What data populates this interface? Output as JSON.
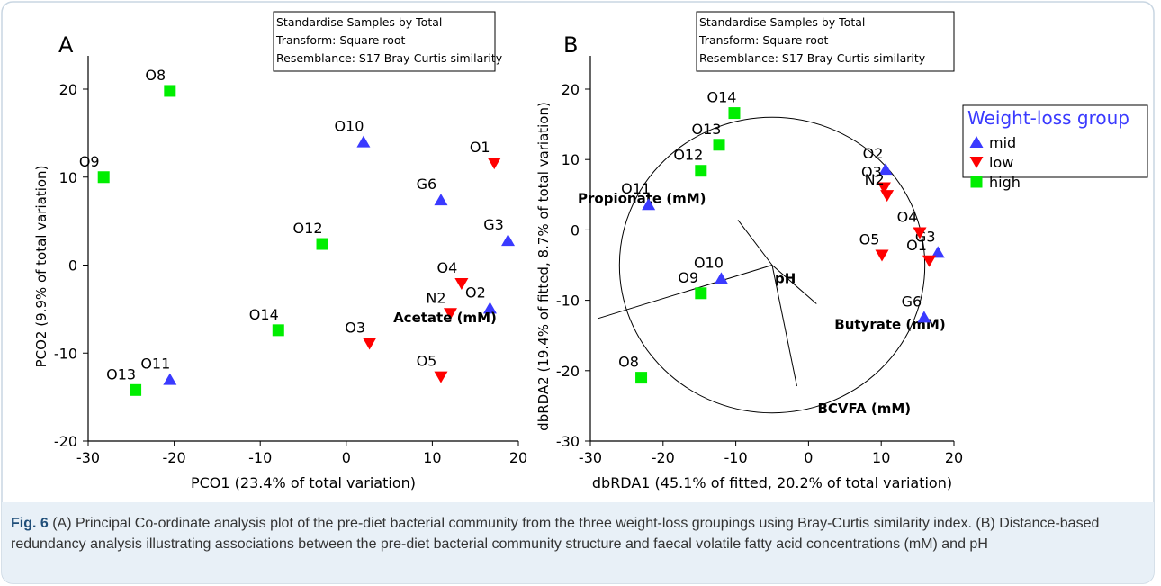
{
  "figure": {
    "caption_label": "Fig. 6",
    "caption_text": " (A) Principal Co-ordinate analysis plot of the pre-diet bacterial community from the three weight-loss groupings using Bray-Curtis similarity index. (B) Distance-based redundancy analysis illustrating associations between the pre-diet bacterial community structure and faecal volatile fatty acid concentrations (mM) and pH"
  },
  "legend": {
    "title": "Weight-loss group",
    "entries": [
      {
        "name": "mid",
        "color": "#3a3aff",
        "marker": "triangle-up"
      },
      {
        "name": "low",
        "color": "#ff0000",
        "marker": "triangle-down"
      },
      {
        "name": "high",
        "color": "#00ee00",
        "marker": "square"
      }
    ]
  },
  "chart_data": [
    {
      "type": "scatter",
      "panel_label": "A",
      "info_box": [
        "Standardise Samples by Total",
        "Transform: Square root",
        "Resemblance: S17 Bray-Curtis similarity"
      ],
      "xlabel": "PCO1 (23.4% of total variation)",
      "ylabel": "PCO2 (9.9% of total variation)",
      "xlim": [
        -30,
        20
      ],
      "ylim": [
        -20,
        20
      ],
      "xticks": [
        -30,
        -20,
        -10,
        0,
        10,
        20
      ],
      "yticks": [
        -20,
        -10,
        0,
        10,
        20
      ],
      "points": [
        {
          "label": "O8",
          "group": "high",
          "x": -20.5,
          "y": 19.8
        },
        {
          "label": "O9",
          "group": "high",
          "x": -28.2,
          "y": 10.0
        },
        {
          "label": "O12",
          "group": "high",
          "x": -2.8,
          "y": 2.4
        },
        {
          "label": "O14",
          "group": "high",
          "x": -7.9,
          "y": -7.4
        },
        {
          "label": "O13",
          "group": "high",
          "x": -24.5,
          "y": -14.2
        },
        {
          "label": "O11",
          "group": "mid",
          "x": -20.5,
          "y": -13.0
        },
        {
          "label": "O10",
          "group": "mid",
          "x": 2.0,
          "y": 14.0
        },
        {
          "label": "G6",
          "group": "mid",
          "x": 11.0,
          "y": 7.4
        },
        {
          "label": "G3",
          "group": "mid",
          "x": 18.8,
          "y": 2.8
        },
        {
          "label": "O2",
          "group": "mid",
          "x": 16.7,
          "y": -4.9
        },
        {
          "label": "O1",
          "group": "low",
          "x": 17.2,
          "y": 11.6
        },
        {
          "label": "O4",
          "group": "low",
          "x": 13.4,
          "y": -2.1
        },
        {
          "label": "N2",
          "group": "low",
          "x": 12.1,
          "y": -5.5
        },
        {
          "label": "O3",
          "group": "low",
          "x": 2.7,
          "y": -8.9
        },
        {
          "label": "O5",
          "group": "low",
          "x": 11.0,
          "y": -12.7
        }
      ]
    },
    {
      "type": "scatter",
      "panel_label": "B",
      "info_box": [
        "Standardise Samples by Total",
        "Transform: Square root",
        "Resemblance: S17 Bray-Curtis similarity"
      ],
      "xlabel": "dbRDA1 (45.1% of fitted, 20.2% of total variation)",
      "ylabel": "dbRDA2 (19.4% of fitted, 8.7% of total variation)",
      "xlim": [
        -30,
        20
      ],
      "ylim": [
        -30,
        20
      ],
      "xticks": [
        -30,
        -20,
        -10,
        0,
        10,
        20
      ],
      "yticks": [
        -30,
        -20,
        -10,
        0,
        10,
        20
      ],
      "points": [
        {
          "label": "O14",
          "group": "high",
          "x": -10.2,
          "y": 16.6
        },
        {
          "label": "O13",
          "group": "high",
          "x": -12.3,
          "y": 12.1
        },
        {
          "label": "O12",
          "group": "high",
          "x": -14.8,
          "y": 8.4
        },
        {
          "label": "O9",
          "group": "high",
          "x": -14.8,
          "y": -9.0
        },
        {
          "label": "O8",
          "group": "high",
          "x": -23.0,
          "y": -21.0
        },
        {
          "label": "O11",
          "group": "mid",
          "x": -22.0,
          "y": 3.6
        },
        {
          "label": "O10",
          "group": "mid",
          "x": -12.0,
          "y": -6.9
        },
        {
          "label": "O2",
          "group": "mid",
          "x": 10.6,
          "y": 8.6
        },
        {
          "label": "G3",
          "group": "mid",
          "x": 17.8,
          "y": -3.2
        },
        {
          "label": "G6",
          "group": "mid",
          "x": 15.9,
          "y": -12.4
        },
        {
          "label": "O3",
          "group": "low",
          "x": 10.4,
          "y": 6.0
        },
        {
          "label": "N2",
          "group": "low",
          "x": 10.8,
          "y": 4.9
        },
        {
          "label": "O4",
          "group": "low",
          "x": 15.3,
          "y": -0.4
        },
        {
          "label": "O1",
          "group": "low",
          "x": 16.6,
          "y": -4.4
        },
        {
          "label": "O5",
          "group": "low",
          "x": 10.1,
          "y": -3.6
        }
      ],
      "vectors": [
        {
          "label": "Propionate (mM)",
          "x": -9.7,
          "y": 1.4
        },
        {
          "label": "Acetate (mM)",
          "x": -29.0,
          "y": -12.6
        },
        {
          "label": "pH",
          "x": -5.0,
          "y": -5.0
        },
        {
          "label": "Butyrate (mM)",
          "x": 1.1,
          "y": -10.5
        },
        {
          "label": "BCVFA (mM)",
          "x": -1.6,
          "y": -22.2
        }
      ],
      "circle": {
        "center": [
          -5.0,
          -5.0
        ],
        "radius": 21.0
      }
    }
  ]
}
